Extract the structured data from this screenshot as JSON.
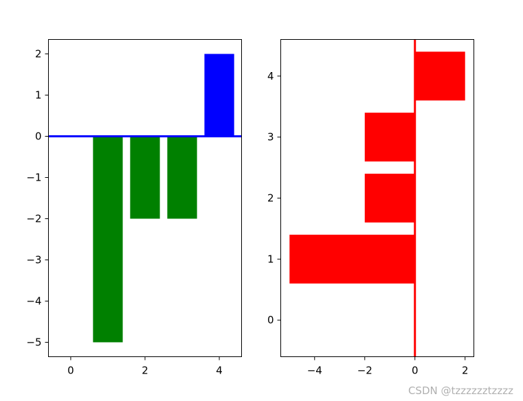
{
  "chart_data": [
    {
      "type": "bar",
      "orientation": "vertical",
      "x": [
        0,
        1,
        2,
        3,
        4
      ],
      "values": [
        0,
        -5,
        -2,
        -2,
        2
      ],
      "bar_width": 0.8,
      "colors": {
        "negative": "#008000",
        "positive": "#0000ff",
        "baseline": "#0000ff"
      },
      "baseline": 0,
      "xlim": [
        -0.6,
        4.6
      ],
      "ylim": [
        -5.35,
        2.35
      ],
      "xticks": [
        0,
        2,
        4
      ],
      "yticks": [
        2,
        1,
        0,
        -1,
        -2,
        -3,
        -4,
        -5
      ],
      "xtick_labels": [
        "0",
        "2",
        "4"
      ],
      "ytick_labels": [
        "2",
        "1",
        "0",
        "−1",
        "−2",
        "−3",
        "−4",
        "−5"
      ]
    },
    {
      "type": "bar",
      "orientation": "horizontal",
      "y": [
        0,
        1,
        2,
        3,
        4
      ],
      "values": [
        0,
        -5,
        -2,
        -2,
        2
      ],
      "bar_height": 0.8,
      "colors": {
        "bars": "#ff0000",
        "baseline": "#ff0000"
      },
      "baseline": 0,
      "xlim": [
        -5.35,
        2.35
      ],
      "ylim": [
        -0.6,
        4.6
      ],
      "xticks": [
        -4,
        -2,
        0,
        2
      ],
      "yticks": [
        4,
        3,
        2,
        1,
        0
      ],
      "xtick_labels": [
        "−4",
        "−2",
        "0",
        "2"
      ],
      "ytick_labels": [
        "4",
        "3",
        "2",
        "1",
        "0"
      ]
    }
  ],
  "watermark": "CSDN @tzzzzzztzzzz"
}
